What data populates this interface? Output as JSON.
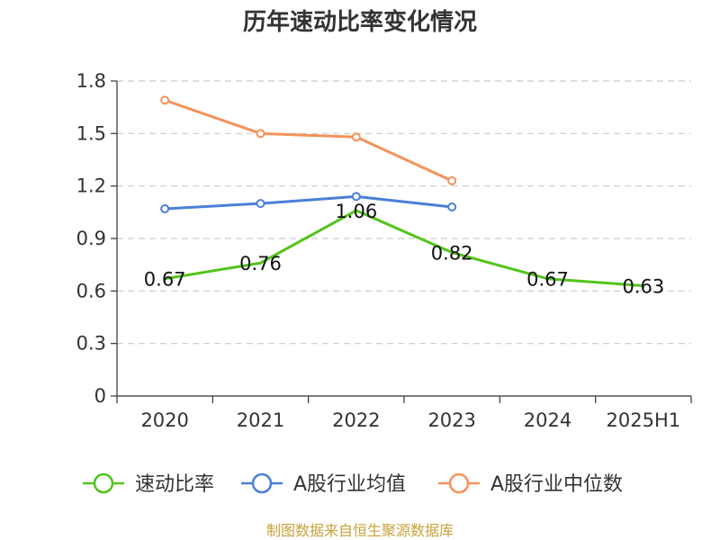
{
  "chart_data": {
    "type": "line",
    "title": "历年速动比率变化情况",
    "categories": [
      "2020",
      "2021",
      "2022",
      "2023",
      "2024",
      "2025H1"
    ],
    "ylim": [
      0,
      1.8
    ],
    "yticks": [
      "0",
      "0.3",
      "0.6",
      "0.9",
      "1.2",
      "1.5",
      "1.8"
    ],
    "grid": true,
    "legend_position": "bottom",
    "series": [
      {
        "name": "速动比率",
        "color": "#52c41a",
        "values": [
          0.67,
          0.76,
          1.06,
          0.82,
          0.67,
          0.63
        ],
        "labels": [
          "0.67",
          "0.76",
          "1.06",
          "0.82",
          "0.67",
          "0.63"
        ]
      },
      {
        "name": "A股行业均值",
        "color": "#4a7fd9",
        "values": [
          1.07,
          1.1,
          1.14,
          1.08,
          null,
          null
        ]
      },
      {
        "name": "A股行业中位数",
        "color": "#f5925a",
        "values": [
          1.69,
          1.5,
          1.48,
          1.23,
          null,
          null
        ]
      }
    ]
  },
  "source": "制图数据来自恒生聚源数据库"
}
